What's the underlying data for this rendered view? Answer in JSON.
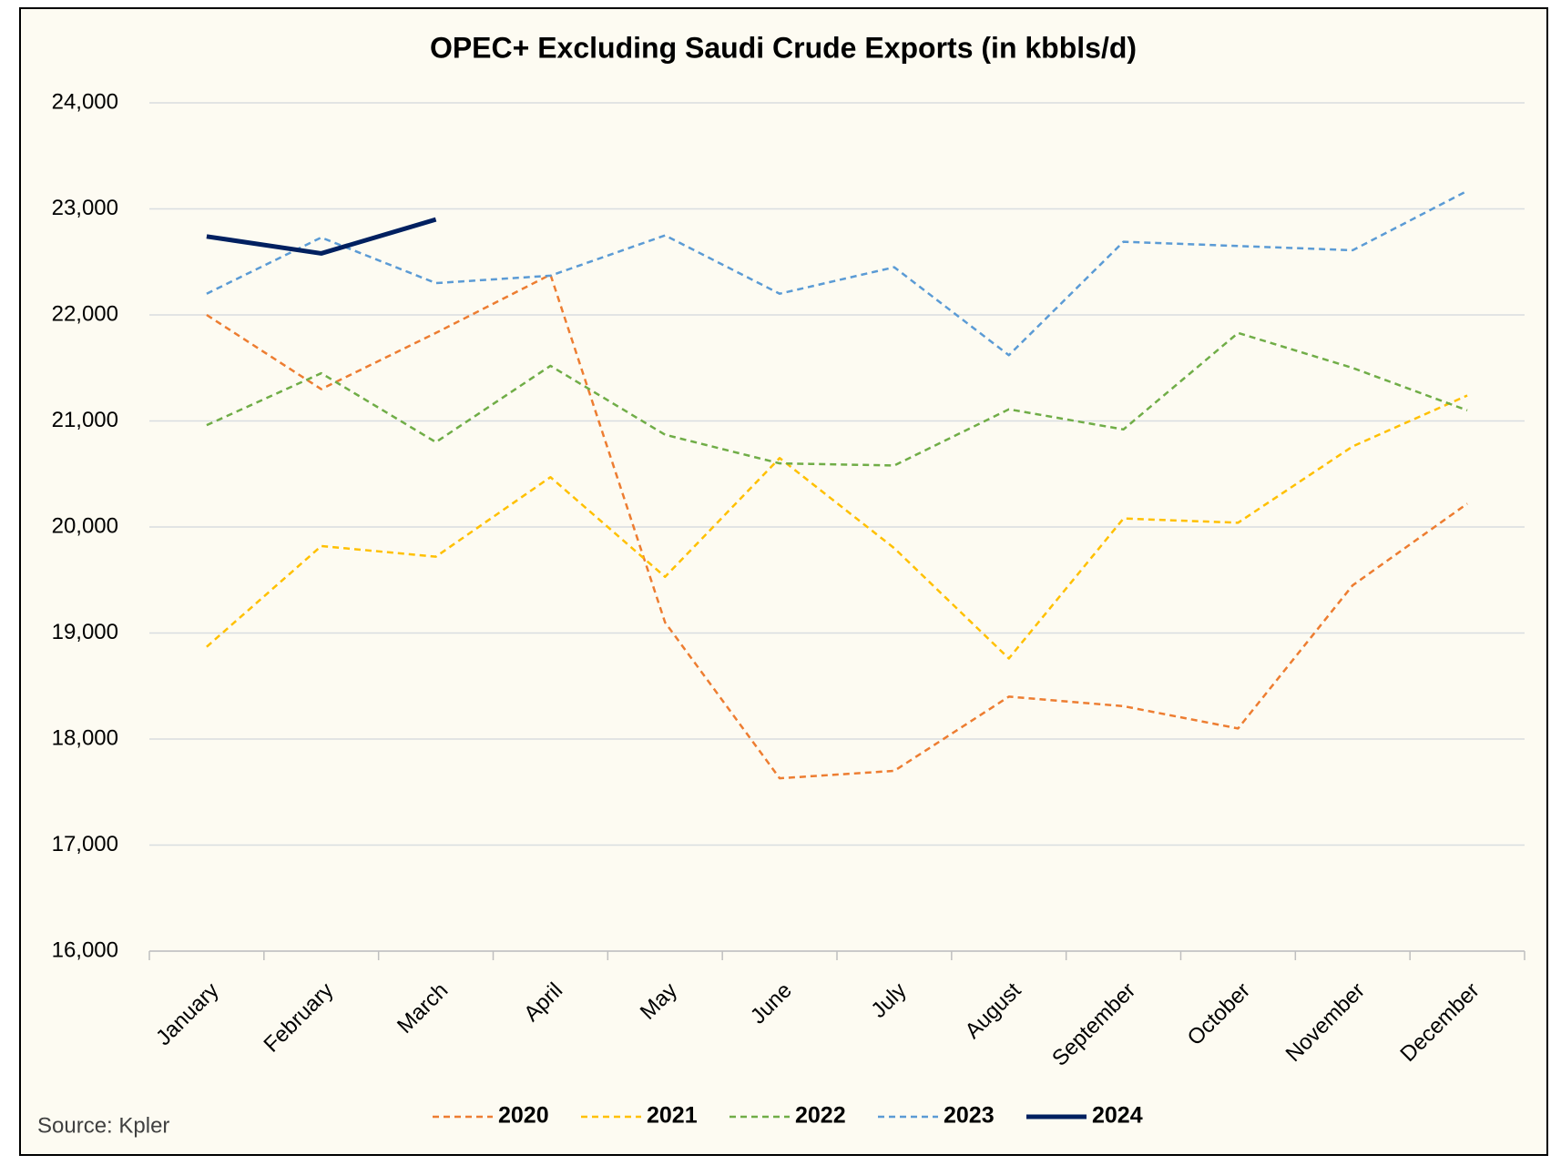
{
  "chart_data": {
    "type": "line",
    "title": "OPEC+ Excluding Saudi Crude Exports (in kbbls/d)",
    "source": "Source: Kpler",
    "categories": [
      "January",
      "February",
      "March",
      "April",
      "May",
      "June",
      "July",
      "August",
      "September",
      "October",
      "November",
      "December"
    ],
    "series": [
      {
        "name": "2020",
        "color": "#ed7d31",
        "dashed": true,
        "values": [
          22000,
          21300,
          21830,
          22380,
          19100,
          17630,
          17700,
          18400,
          18310,
          18100,
          19450,
          20220
        ]
      },
      {
        "name": "2021",
        "color": "#ffc000",
        "dashed": true,
        "values": [
          18870,
          19820,
          19720,
          20470,
          19530,
          20650,
          19800,
          18760,
          20080,
          20040,
          20760,
          21240
        ]
      },
      {
        "name": "2022",
        "color": "#70ad47",
        "dashed": true,
        "values": [
          20960,
          21450,
          20800,
          21520,
          20870,
          20600,
          20580,
          21110,
          20920,
          21830,
          21500,
          21100
        ]
      },
      {
        "name": "2023",
        "color": "#5b9bd5",
        "dashed": true,
        "values": [
          22200,
          22730,
          22300,
          22370,
          22750,
          22200,
          22450,
          21620,
          22690,
          22650,
          22610,
          23170
        ]
      },
      {
        "name": "2024",
        "color": "#002060",
        "dashed": false,
        "values": [
          22740,
          22580,
          22900,
          null,
          null,
          null,
          null,
          null,
          null,
          null,
          null,
          null
        ]
      }
    ],
    "ylim": [
      16000,
      24000
    ],
    "yticks": [
      {
        "value": 16000,
        "label": "16,000"
      },
      {
        "value": 17000,
        "label": "17,000"
      },
      {
        "value": 18000,
        "label": "18,000"
      },
      {
        "value": 19000,
        "label": "19,000"
      },
      {
        "value": 20000,
        "label": "20,000"
      },
      {
        "value": 21000,
        "label": "21,000"
      },
      {
        "value": 22000,
        "label": "22,000"
      },
      {
        "value": 23000,
        "label": "23,000"
      },
      {
        "value": 24000,
        "label": "24,000"
      }
    ],
    "grid": true,
    "legend": "bottom"
  }
}
